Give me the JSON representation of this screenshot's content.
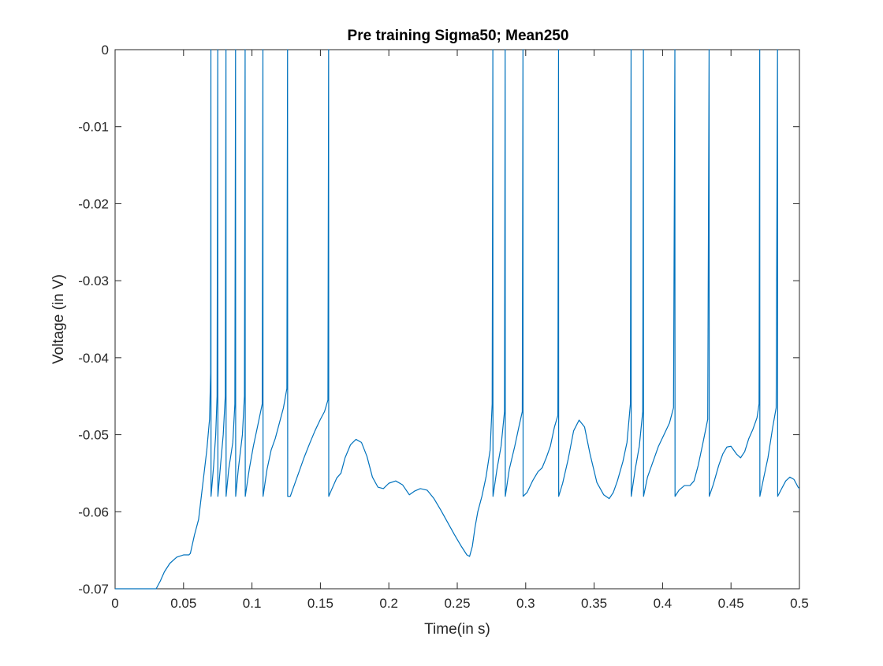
{
  "chart_data": {
    "type": "line",
    "title": "Pre training Sigma50; Mean250",
    "xlabel": "Time(in s)",
    "ylabel": "Voltage (in V)",
    "xlim": [
      0,
      0.5
    ],
    "ylim": [
      -0.07,
      0
    ],
    "x_ticks": [
      0,
      0.05,
      0.1,
      0.15,
      0.2,
      0.25,
      0.3,
      0.35,
      0.4,
      0.45,
      0.5
    ],
    "x_tick_labels": [
      "0",
      "0.05",
      "0.1",
      "0.15",
      "0.2",
      "0.25",
      "0.3",
      "0.35",
      "0.4",
      "0.45",
      "0.5"
    ],
    "y_ticks": [
      0,
      -0.01,
      -0.02,
      -0.03,
      -0.04,
      -0.05,
      -0.06,
      -0.07
    ],
    "y_tick_labels": [
      "0",
      "-0.01",
      "-0.02",
      "-0.03",
      "-0.04",
      "-0.05",
      "-0.06",
      "-0.07"
    ],
    "grid": false,
    "line_color": "#0072BD",
    "series": [
      {
        "points": [
          [
            0,
            -0.07
          ],
          [
            0.03,
            -0.07
          ],
          [
            0.033,
            -0.069
          ],
          [
            0.036,
            -0.0678
          ],
          [
            0.04,
            -0.0667
          ],
          [
            0.045,
            -0.0659
          ],
          [
            0.05,
            -0.0656
          ],
          [
            0.054,
            -0.0656
          ],
          [
            0.055,
            -0.0654
          ],
          [
            0.058,
            -0.063
          ],
          [
            0.061,
            -0.061
          ],
          [
            0.063,
            -0.058
          ],
          [
            0.065,
            -0.055
          ],
          [
            0.067,
            -0.052
          ],
          [
            0.069,
            -0.048
          ],
          [
            0.0698,
            -0.042
          ],
          [
            0.07,
            0
          ],
          [
            0.0701,
            -0.058
          ],
          [
            0.072,
            -0.054
          ],
          [
            0.0735,
            -0.05
          ],
          [
            0.0745,
            -0.045
          ],
          [
            0.075,
            0
          ],
          [
            0.0751,
            -0.058
          ],
          [
            0.077,
            -0.054
          ],
          [
            0.079,
            -0.05
          ],
          [
            0.0805,
            -0.045
          ],
          [
            0.081,
            0
          ],
          [
            0.0811,
            -0.058
          ],
          [
            0.083,
            -0.0545
          ],
          [
            0.086,
            -0.051
          ],
          [
            0.0875,
            -0.046
          ],
          [
            0.088,
            0
          ],
          [
            0.0881,
            -0.058
          ],
          [
            0.09,
            -0.0545
          ],
          [
            0.093,
            -0.05
          ],
          [
            0.0945,
            -0.045
          ],
          [
            0.095,
            0
          ],
          [
            0.0951,
            -0.058
          ],
          [
            0.098,
            -0.0545
          ],
          [
            0.101,
            -0.0515
          ],
          [
            0.104,
            -0.049
          ],
          [
            0.1075,
            -0.046
          ],
          [
            0.108,
            0
          ],
          [
            0.1081,
            -0.058
          ],
          [
            0.111,
            -0.0545
          ],
          [
            0.114,
            -0.052
          ],
          [
            0.117,
            -0.0505
          ],
          [
            0.12,
            -0.0485
          ],
          [
            0.123,
            -0.0465
          ],
          [
            0.1255,
            -0.044
          ],
          [
            0.126,
            0
          ],
          [
            0.1261,
            -0.058
          ],
          [
            0.128,
            -0.058
          ],
          [
            0.131,
            -0.0565
          ],
          [
            0.135,
            -0.0545
          ],
          [
            0.138,
            -0.053
          ],
          [
            0.142,
            -0.0512
          ],
          [
            0.146,
            -0.0495
          ],
          [
            0.15,
            -0.048
          ],
          [
            0.153,
            -0.047
          ],
          [
            0.1555,
            -0.0455
          ],
          [
            0.156,
            0
          ],
          [
            0.1561,
            -0.058
          ],
          [
            0.158,
            -0.0572
          ],
          [
            0.162,
            -0.0556
          ],
          [
            0.165,
            -0.055
          ],
          [
            0.168,
            -0.053
          ],
          [
            0.172,
            -0.0513
          ],
          [
            0.176,
            -0.0506
          ],
          [
            0.18,
            -0.051
          ],
          [
            0.184,
            -0.0528
          ],
          [
            0.188,
            -0.0555
          ],
          [
            0.192,
            -0.0568
          ],
          [
            0.196,
            -0.057
          ],
          [
            0.2,
            -0.0563
          ],
          [
            0.205,
            -0.056
          ],
          [
            0.21,
            -0.0565
          ],
          [
            0.215,
            -0.0578
          ],
          [
            0.219,
            -0.0573
          ],
          [
            0.223,
            -0.057
          ],
          [
            0.228,
            -0.0572
          ],
          [
            0.233,
            -0.0583
          ],
          [
            0.238,
            -0.0598
          ],
          [
            0.243,
            -0.0614
          ],
          [
            0.248,
            -0.063
          ],
          [
            0.253,
            -0.0645
          ],
          [
            0.257,
            -0.0656
          ],
          [
            0.259,
            -0.0658
          ],
          [
            0.261,
            -0.0645
          ],
          [
            0.263,
            -0.062
          ],
          [
            0.265,
            -0.06
          ],
          [
            0.268,
            -0.058
          ],
          [
            0.271,
            -0.0555
          ],
          [
            0.274,
            -0.052
          ],
          [
            0.2755,
            -0.046
          ],
          [
            0.276,
            0
          ],
          [
            0.2761,
            -0.058
          ],
          [
            0.279,
            -0.0545
          ],
          [
            0.282,
            -0.0515
          ],
          [
            0.2845,
            -0.047
          ],
          [
            0.285,
            0
          ],
          [
            0.2851,
            -0.058
          ],
          [
            0.288,
            -0.0545
          ],
          [
            0.292,
            -0.0515
          ],
          [
            0.295,
            -0.049
          ],
          [
            0.2975,
            -0.047
          ],
          [
            0.298,
            0
          ],
          [
            0.2981,
            -0.058
          ],
          [
            0.301,
            -0.0575
          ],
          [
            0.305,
            -0.056
          ],
          [
            0.309,
            -0.0548
          ],
          [
            0.312,
            -0.0543
          ],
          [
            0.315,
            -0.053
          ],
          [
            0.318,
            -0.0515
          ],
          [
            0.321,
            -0.049
          ],
          [
            0.3235,
            -0.0475
          ],
          [
            0.324,
            0
          ],
          [
            0.3241,
            -0.058
          ],
          [
            0.327,
            -0.0563
          ],
          [
            0.331,
            -0.0532
          ],
          [
            0.335,
            -0.0495
          ],
          [
            0.339,
            -0.0481
          ],
          [
            0.343,
            -0.049
          ],
          [
            0.347,
            -0.0525
          ],
          [
            0.352,
            -0.0562
          ],
          [
            0.357,
            -0.0578
          ],
          [
            0.361,
            -0.0583
          ],
          [
            0.364,
            -0.0575
          ],
          [
            0.367,
            -0.056
          ],
          [
            0.371,
            -0.0535
          ],
          [
            0.374,
            -0.051
          ],
          [
            0.3765,
            -0.046
          ],
          [
            0.377,
            0
          ],
          [
            0.3771,
            -0.058
          ],
          [
            0.38,
            -0.0545
          ],
          [
            0.383,
            -0.0515
          ],
          [
            0.3855,
            -0.047
          ],
          [
            0.386,
            0
          ],
          [
            0.3861,
            -0.058
          ],
          [
            0.389,
            -0.0555
          ],
          [
            0.393,
            -0.0535
          ],
          [
            0.397,
            -0.0515
          ],
          [
            0.401,
            -0.05
          ],
          [
            0.405,
            -0.0485
          ],
          [
            0.408,
            -0.0465
          ],
          [
            0.409,
            0
          ],
          [
            0.4091,
            -0.058
          ],
          [
            0.412,
            -0.0572
          ],
          [
            0.416,
            -0.0566
          ],
          [
            0.42,
            -0.0566
          ],
          [
            0.423,
            -0.056
          ],
          [
            0.426,
            -0.054
          ],
          [
            0.429,
            -0.0515
          ],
          [
            0.433,
            -0.048
          ],
          [
            0.434,
            0
          ],
          [
            0.4341,
            -0.058
          ],
          [
            0.437,
            -0.0565
          ],
          [
            0.441,
            -0.054
          ],
          [
            0.444,
            -0.0525
          ],
          [
            0.447,
            -0.0516
          ],
          [
            0.45,
            -0.0515
          ],
          [
            0.454,
            -0.0525
          ],
          [
            0.457,
            -0.053
          ],
          [
            0.46,
            -0.0522
          ],
          [
            0.463,
            -0.0505
          ],
          [
            0.466,
            -0.0493
          ],
          [
            0.469,
            -0.0478
          ],
          [
            0.4705,
            -0.046
          ],
          [
            0.471,
            0
          ],
          [
            0.4711,
            -0.058
          ],
          [
            0.474,
            -0.0555
          ],
          [
            0.477,
            -0.053
          ],
          [
            0.4805,
            -0.049
          ],
          [
            0.483,
            -0.0465
          ],
          [
            0.484,
            0
          ],
          [
            0.4841,
            -0.058
          ],
          [
            0.487,
            -0.057
          ],
          [
            0.49,
            -0.056
          ],
          [
            0.493,
            -0.0555
          ],
          [
            0.496,
            -0.0558
          ],
          [
            0.499,
            -0.0568
          ],
          [
            0.5,
            -0.057
          ]
        ]
      }
    ]
  }
}
